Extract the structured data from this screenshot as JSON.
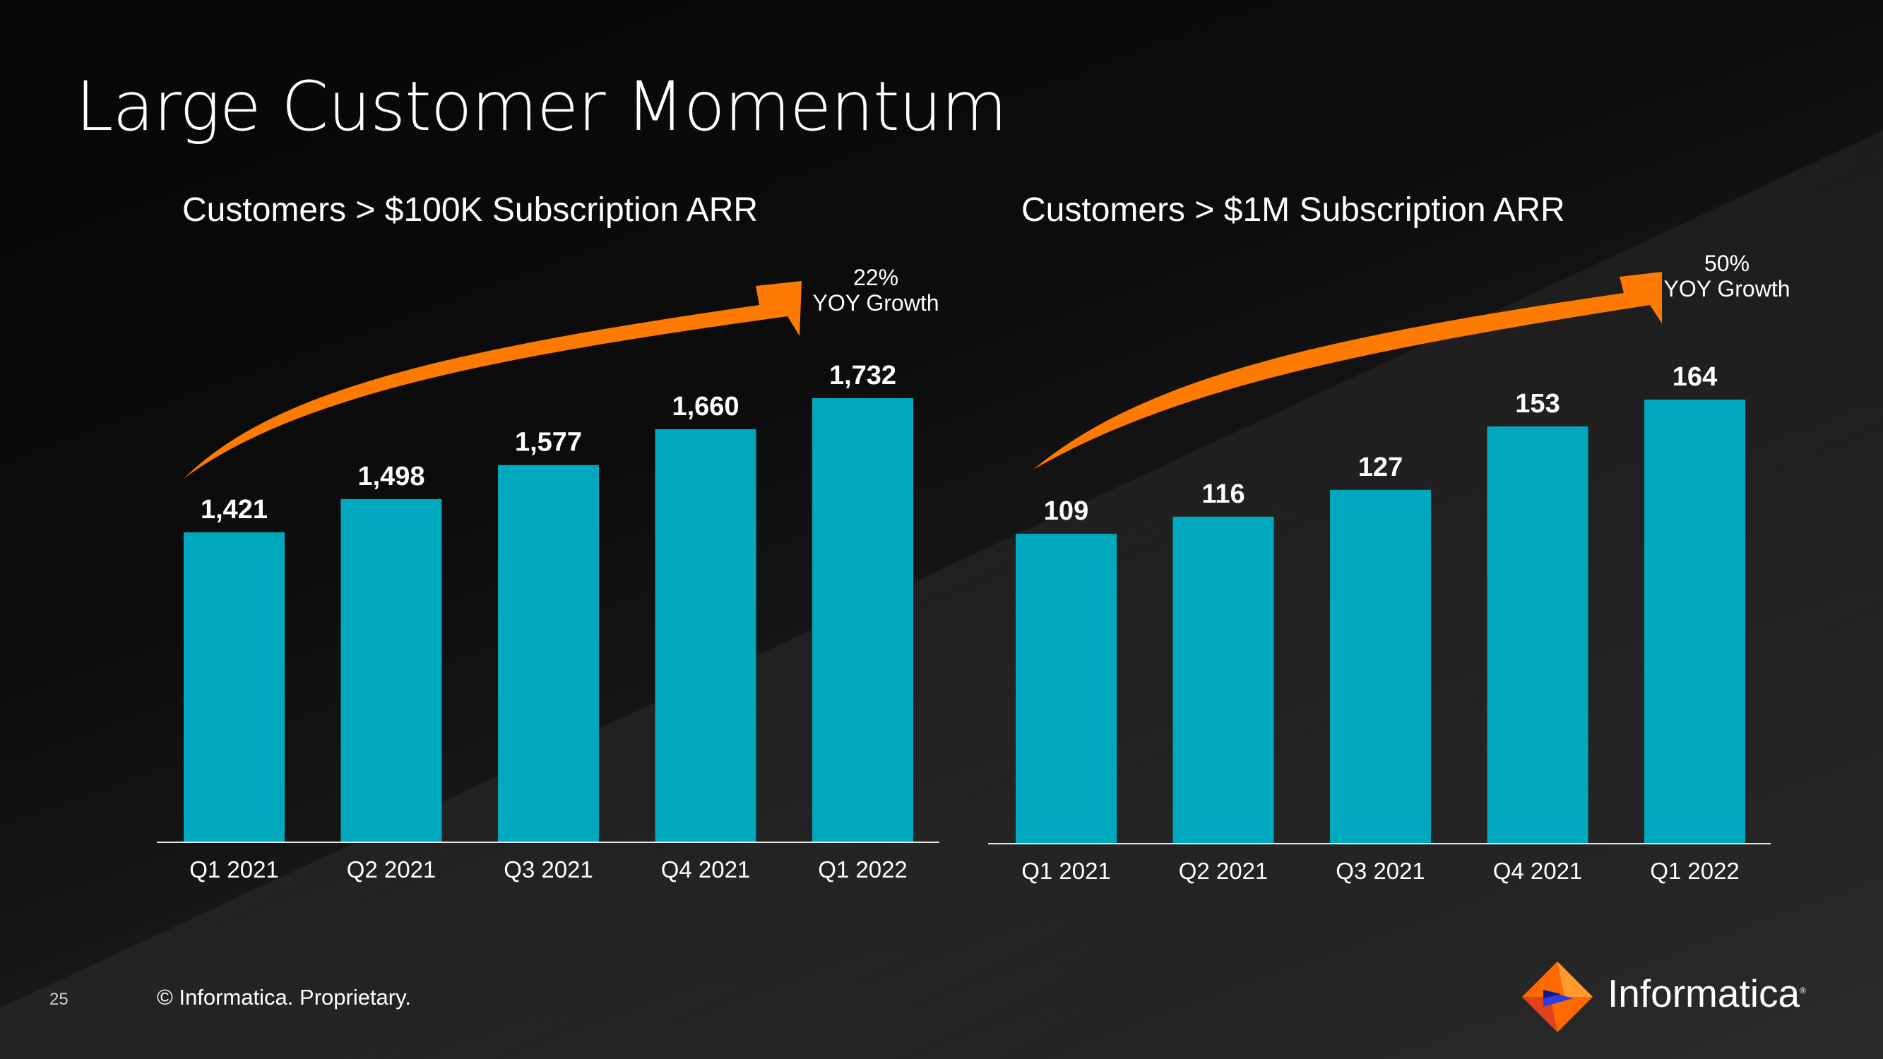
{
  "slide": {
    "title": "Large Customer Momentum",
    "page_number": "25",
    "copyright": "© Informatica. Proprietary.",
    "logo_text": "Informatica",
    "logo_mark": "®"
  },
  "colors": {
    "bar": "#00A8BD",
    "arrow": "#FF7A00",
    "axis": "#e6e6e6",
    "text": "#FFFFFF"
  },
  "chart_data": [
    {
      "type": "bar",
      "title": "Customers > $100K Subscription ARR",
      "categories": [
        "Q1 2021",
        "Q2 2021",
        "Q3 2021",
        "Q4 2021",
        "Q1 2022"
      ],
      "values": [
        1421,
        1498,
        1577,
        1660,
        1732
      ],
      "value_labels": [
        "1,421",
        "1,498",
        "1,577",
        "1,660",
        "1,732"
      ],
      "annotation": {
        "line1": "22%",
        "line2": "YOY Growth"
      },
      "grid": false,
      "legend": "none"
    },
    {
      "type": "bar",
      "title": "Customers >  $1M Subscription ARR",
      "categories": [
        "Q1 2021",
        "Q2 2021",
        "Q3 2021",
        "Q4 2021",
        "Q1 2022"
      ],
      "values": [
        109,
        116,
        127,
        153,
        164
      ],
      "value_labels": [
        "109",
        "116",
        "127",
        "153",
        "164"
      ],
      "annotation": {
        "line1": "50%",
        "line2": "YOY Growth"
      },
      "grid": false,
      "legend": "none"
    }
  ]
}
